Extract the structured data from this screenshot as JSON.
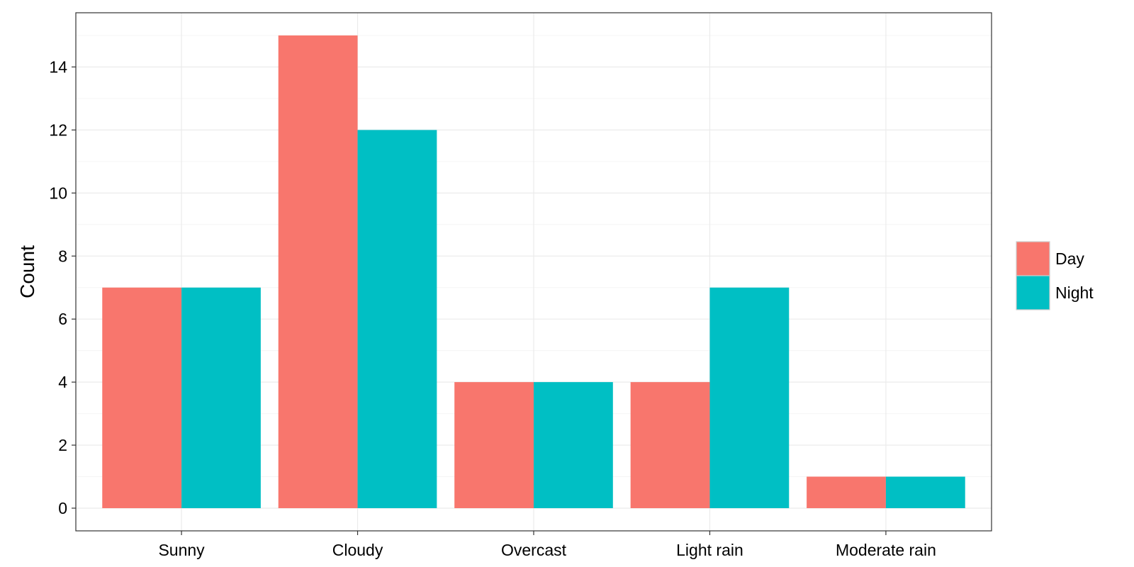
{
  "chart_data": {
    "type": "bar",
    "categories": [
      "Sunny",
      "Cloudy",
      "Overcast",
      "Light rain",
      "Moderate rain"
    ],
    "series": [
      {
        "name": "Day",
        "values": [
          7,
          15,
          4,
          4,
          1
        ],
        "color": "#F8766D"
      },
      {
        "name": "Night",
        "values": [
          7,
          12,
          4,
          7,
          1
        ],
        "color": "#00BFC4"
      }
    ],
    "xlabel": "",
    "ylabel": "Count",
    "ylim": [
      -0.72,
      15.72
    ],
    "yticks": [
      0,
      2,
      4,
      6,
      8,
      10,
      12,
      14
    ],
    "grid": true,
    "legend_position": "right",
    "theme": {
      "panel_border": "#333333",
      "grid_major": "#EBEBEB",
      "grid_minor": "#F5F5F5",
      "axis_tick": "#333333",
      "legend_key_border": "#CCCCCC"
    }
  }
}
